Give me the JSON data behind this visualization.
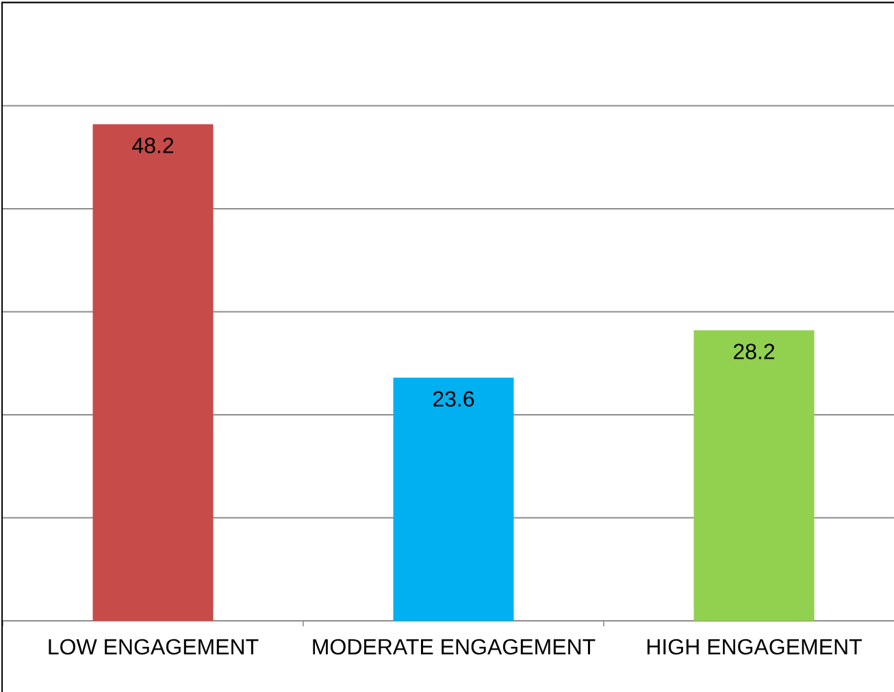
{
  "chart_data": {
    "type": "bar",
    "categories": [
      "LOW ENGAGEMENT",
      "MODERATE ENGAGEMENT",
      "HIGH ENGAGEMENT"
    ],
    "values": [
      48.2,
      23.6,
      28.2
    ],
    "colors": [
      "#c64b49",
      "#00b0f0",
      "#92d050"
    ],
    "ylim": [
      0,
      60
    ],
    "yticks": [
      {
        "value": 0,
        "label": null
      },
      {
        "value": 10,
        "label": null
      },
      {
        "value": 20,
        "label": null
      },
      {
        "value": 30,
        "label": null
      },
      {
        "value": 40,
        "label": null
      },
      {
        "value": 50,
        "label": null
      },
      {
        "value": 60,
        "label": null
      }
    ],
    "grid": "y",
    "data_labels": true,
    "tick_labels": "x"
  }
}
